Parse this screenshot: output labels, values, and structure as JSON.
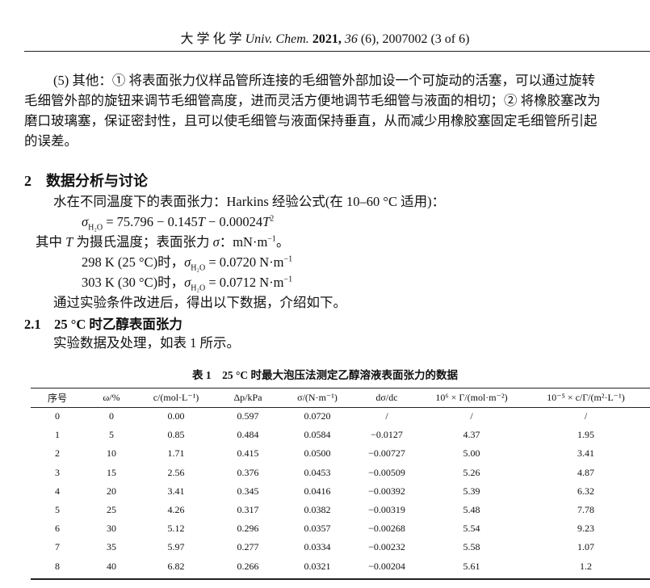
{
  "header": {
    "prefix": "大 学 化 学 ",
    "journal": "Univ. Chem.",
    "year": "2021,",
    "volume": "36",
    "rest": " (6), 2007002 (3 of 6)"
  },
  "para5": {
    "lines": [
      "(5) 其他：① 将表面张力仪样品管所连接的毛细管外部加设一个可旋动的活塞，可以通过旋转",
      "毛细管外部的旋钮来调节毛细管高度，进而灵活方便地调节毛细管与液面的相切；② 将橡胶塞改为",
      "磨口玻璃塞，保证密封性，且可以使毛细管与液面保持垂直，从而减少用橡胶塞固定毛细管所引起",
      "的误差。"
    ]
  },
  "section2": {
    "title": "2　数据分析与讨论",
    "intro": "水在不同温度下的表面张力：Harkins 经验公式(在 10–60 °C 适用)：",
    "formula": {
      "sym": "σ",
      "sub": "H₂O",
      "expr1": " = 75.796 − 0.145",
      "T": "T",
      "expr2": " − 0.00024",
      "T2": "T",
      "sup": "2"
    },
    "where": {
      "a": "其中 ",
      "T": "T",
      "b": " 为摄氏温度；表面张力 ",
      "sigma": "σ",
      "c": "：mN·m",
      "sup": "−1",
      "d": "。"
    },
    "v298": {
      "a": "298 K (25 °C)时，",
      "sym": "σ",
      "sub": "H₂O",
      "b": " = 0.0720 N·m",
      "sup": "−1"
    },
    "v303": {
      "a": "303 K (30 °C)时，",
      "sym": "σ",
      "sub": "H₂O",
      "b": " = 0.0712 N·m",
      "sup": "−1"
    },
    "after": "通过实验条件改进后，得出以下数据，介绍如下。"
  },
  "section21": {
    "title": "2.1　25 °C 时乙醇表面张力",
    "text": "实验数据及处理，如表 1 所示。"
  },
  "table": {
    "caption": "表 1　25 °C 时最大泡压法测定乙醇溶液表面张力的数据",
    "headers": [
      "序号",
      "ω/%",
      "c/(mol·L⁻¹)",
      "Δp/kPa",
      "σ/(N·m⁻¹)",
      "dσ/dc",
      "10⁶ × Γ/(mol·m⁻²)",
      "10⁻⁵ × c/Γ/(m²·L⁻¹)"
    ],
    "rows": [
      [
        "0",
        "0",
        "0.00",
        "0.597",
        "0.0720",
        "/",
        "/",
        "/"
      ],
      [
        "1",
        "5",
        "0.85",
        "0.484",
        "0.0584",
        "−0.0127",
        "4.37",
        "1.95"
      ],
      [
        "2",
        "10",
        "1.71",
        "0.415",
        "0.0500",
        "−0.00727",
        "5.00",
        "3.41"
      ],
      [
        "3",
        "15",
        "2.56",
        "0.376",
        "0.0453",
        "−0.00509",
        "5.26",
        "4.87"
      ],
      [
        "4",
        "20",
        "3.41",
        "0.345",
        "0.0416",
        "−0.00392",
        "5.39",
        "6.32"
      ],
      [
        "5",
        "25",
        "4.26",
        "0.317",
        "0.0382",
        "−0.00319",
        "5.48",
        "7.78"
      ],
      [
        "6",
        "30",
        "5.12",
        "0.296",
        "0.0357",
        "−0.00268",
        "5.54",
        "9.23"
      ],
      [
        "7",
        "35",
        "5.97",
        "0.277",
        "0.0334",
        "−0.00232",
        "5.58",
        "1.07"
      ],
      [
        "8",
        "40",
        "6.82",
        "0.266",
        "0.0321",
        "−0.00204",
        "5.61",
        "1.2"
      ]
    ]
  }
}
